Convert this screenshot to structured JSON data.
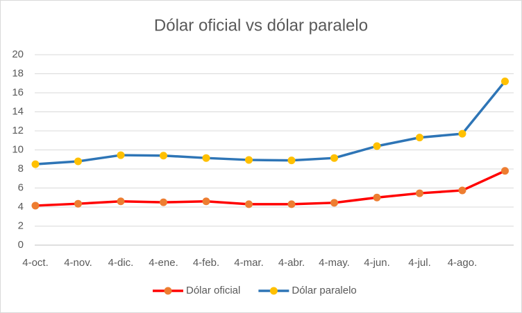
{
  "chart_data": {
    "type": "line",
    "title": "Dólar oficial vs dólar paralelo",
    "categories": [
      "4-oct.",
      "4-nov.",
      "4-dic.",
      "4-ene.",
      "4-feb.",
      "4-mar.",
      "4-abr.",
      "4-may.",
      "4-jun.",
      "4-jul.",
      "4-ago.",
      null
    ],
    "series": [
      {
        "name": "Dólar oficial",
        "color": "#ff0000",
        "marker_color": "#ed7d31",
        "values": [
          4.15,
          4.35,
          4.6,
          4.5,
          4.6,
          4.3,
          4.3,
          4.45,
          5.0,
          5.45,
          5.75,
          7.8
        ]
      },
      {
        "name": "Dólar paralelo",
        "color": "#2e75b6",
        "marker_color": "#ffc000",
        "values": [
          8.5,
          8.8,
          9.45,
          9.4,
          9.15,
          8.95,
          8.9,
          9.15,
          10.4,
          11.3,
          11.7,
          17.2
        ]
      }
    ],
    "ylim": [
      0,
      20
    ],
    "yticks": [
      0,
      2,
      4,
      6,
      8,
      10,
      12,
      14,
      16,
      18,
      20
    ],
    "grid": true,
    "legend": "bottom"
  }
}
